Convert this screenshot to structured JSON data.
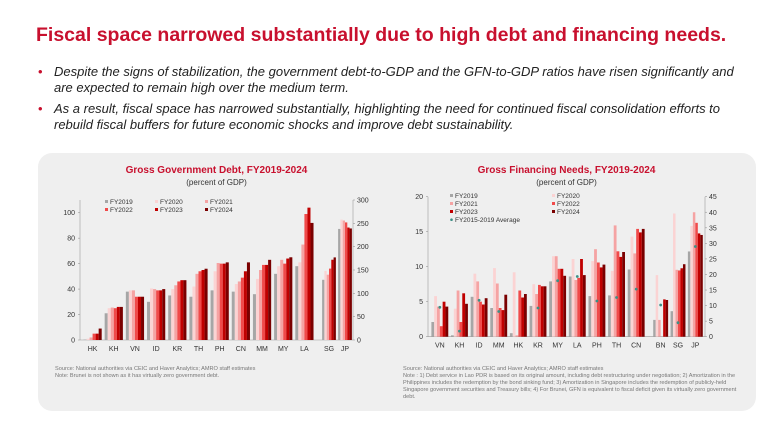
{
  "title": "Fiscal space narrowed substantially due to high debt and financing needs.",
  "bullets": [
    "Despite the signs of stabilization, the government debt-to-GDP and the GFN-to-GDP ratios have risen significantly and are expected to remain high over the medium term.",
    "As a result, fiscal space has narrowed substantially, highlighting the need for continued fiscal consolidation efforts to rebuild fiscal buffers for future economic shocks and improve debt sustainability."
  ],
  "bullet_icon": "•",
  "colors": {
    "FY2019": "#a6a6a6",
    "FY2020": "#fbd3d3",
    "FY2021": "#f5a3a3",
    "FY2022": "#f04a4a",
    "FY2023": "#c00000",
    "FY2024": "#7a0000",
    "FY2015-2019 Average": "#3d8f86",
    "title": "#c8102e"
  },
  "chart_data": [
    {
      "type": "bar",
      "title": "Gross Government Debt, FY2019-2024",
      "subtitle": "(percent of GDP)",
      "categories": [
        "HK",
        "KH",
        "VN",
        "ID",
        "KR",
        "TH",
        "PH",
        "CN",
        "MM",
        "MY",
        "LA",
        "SG",
        "JP"
      ],
      "secondary_axis_categories": [
        "SG",
        "JP"
      ],
      "ylim": [
        0,
        110
      ],
      "yticks": [
        0,
        20,
        40,
        60,
        80,
        100
      ],
      "y2lim": [
        0,
        300
      ],
      "y2ticks": [
        0,
        50,
        100,
        150,
        200,
        250,
        300
      ],
      "legend": "top-center",
      "series": [
        {
          "name": "FY2019",
          "values": [
            0.3,
            21,
            38,
            30,
            35,
            34,
            39,
            38,
            36,
            52,
            58,
            129,
            238
          ]
        },
        {
          "name": "FY2020",
          "values": [
            1,
            25,
            39,
            40.5,
            40,
            42,
            54,
            44,
            48,
            58,
            61,
            148,
            258
          ]
        },
        {
          "name": "FY2021",
          "values": [
            2,
            25.5,
            39,
            40,
            43,
            52,
            60.5,
            46,
            55,
            63,
            75,
            140,
            256
          ]
        },
        {
          "name": "FY2022",
          "values": [
            5,
            25,
            34,
            39,
            46,
            54,
            60,
            49,
            59,
            60,
            99,
            153,
            252
          ]
        },
        {
          "name": "FY2023",
          "values": [
            5,
            26,
            34,
            39,
            47,
            55,
            60,
            54,
            59,
            64,
            104,
            172,
            241
          ]
        },
        {
          "name": "FY2024",
          "values": [
            9,
            26,
            34,
            40,
            47,
            56,
            61,
            61,
            63,
            65,
            92,
            177,
            239
          ]
        }
      ],
      "source": "Source: National authorities via CEIC and Haver Analytics; AMRO staff estimates",
      "note": "Note: Brunei is not shown as it has virtually zero government debt."
    },
    {
      "type": "bar",
      "title": "Gross Financing Needs, FY2019-2024",
      "subtitle": "(percent of GDP)",
      "categories": [
        "VN",
        "KH",
        "ID",
        "MM",
        "HK",
        "KR",
        "MY",
        "LA",
        "PH",
        "TH",
        "CN",
        "BN",
        "SG",
        "JP"
      ],
      "secondary_axis_categories": [
        "BN",
        "SG",
        "JP"
      ],
      "ylim": [
        0,
        20
      ],
      "yticks": [
        0,
        5,
        10,
        15,
        20
      ],
      "y2lim": [
        0,
        45
      ],
      "y2ticks": [
        0,
        5,
        10,
        15,
        20,
        25,
        30,
        35,
        40,
        45
      ],
      "legend": "top-left",
      "series": [
        {
          "name": "FY2019",
          "values": [
            2.1,
            0.2,
            5.7,
            4.1,
            0.5,
            4.4,
            7.9,
            8.6,
            5.8,
            5.9,
            9.6,
            5.4,
            8.2,
            27.4
          ]
        },
        {
          "name": "FY2020",
          "values": [
            5.8,
            4.0,
            9.0,
            9.8,
            9.2,
            7.5,
            11.5,
            11.1,
            10.8,
            9.4,
            14.3,
            19.8,
            39.6,
            35.6
          ]
        },
        {
          "name": "FY2021",
          "values": [
            4.3,
            6.6,
            7.9,
            7.6,
            0.2,
            6.1,
            11.5,
            8.1,
            12.5,
            15.9,
            11.9,
            5.4,
            21.5,
            40
          ]
        },
        {
          "name": "FY2022",
          "values": [
            1.5,
            2.1,
            5.0,
            4.1,
            6.6,
            7.4,
            9.7,
            8.4,
            10.6,
            12.2,
            15.4,
            0,
            21.3,
            36.6
          ]
        },
        {
          "name": "FY2023",
          "values": [
            5.0,
            6.2,
            4.6,
            3.8,
            5.6,
            7.2,
            9.7,
            11.1,
            9.9,
            11.4,
            14.9,
            12,
            22,
            33.2
          ]
        },
        {
          "name": "FY2024",
          "values": [
            4.3,
            4.7,
            5.5,
            6.0,
            6.1,
            7.2,
            8.7,
            8.8,
            10.3,
            12.1,
            15.4,
            11.8,
            23.3,
            32.7
          ]
        }
      ],
      "markers": {
        "name": "FY2015-2019 Average",
        "values": [
          4.2,
          0.8,
          5.2,
          3.6,
          null,
          4.1,
          8.0,
          8.6,
          5.1,
          5.6,
          6.8,
          10.2,
          4.5,
          29
        ]
      },
      "source": "Source: National authorities via CEIC and Haver Analytics; AMRO staff estimates",
      "note": "Note : 1) Debt service in Lao PDR is based on its original amount, including debt restructuring under negotiation; 2) Amortization in the Philippines includes the redemption by the bond sinking fund; 3) Amortization in Singapore includes the redemption of publicly-held Singapore government securities and Treasury bills; 4) For Brunei, GFN is equivalent to fiscal deficit given its virtually zero government debt."
    }
  ]
}
